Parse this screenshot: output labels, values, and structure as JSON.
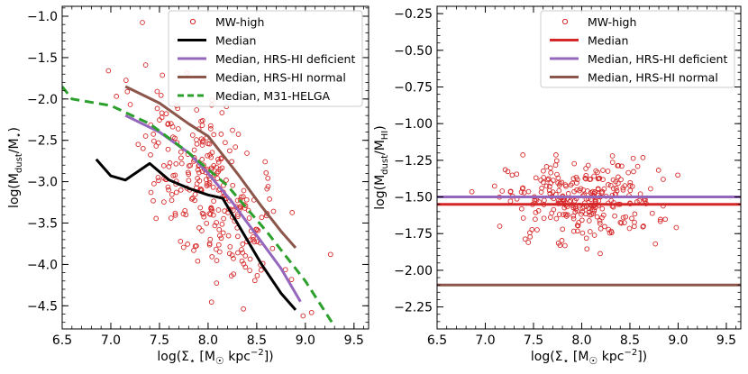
{
  "chart_data": [
    {
      "type": "scatter",
      "xlabel": "log(Σ⋆ [M☉ kpc⁻²])",
      "ylabel": "log(M_dust/M⋆)",
      "xlim": [
        6.5,
        9.65
      ],
      "ylim": [
        -4.78,
        -0.88
      ],
      "xticks": [
        6.5,
        7.0,
        7.5,
        8.0,
        8.5,
        9.0,
        9.5
      ],
      "xtick_labels": [
        "6.5",
        "7.0",
        "7.5",
        "8.0",
        "8.5",
        "9.0",
        "9.5"
      ],
      "yticks": [
        -1.0,
        -1.5,
        -2.0,
        -2.5,
        -3.0,
        -3.5,
        -4.0,
        -4.5
      ],
      "ytick_labels": [
        "−1.0",
        "−1.5",
        "−2.0",
        "−2.5",
        "−3.0",
        "−3.5",
        "−4.0",
        "−4.5"
      ],
      "legend_position": "top-right",
      "legend": [
        "MW-high",
        "Median",
        "Median, HRS-HI deficient",
        "Median, HRS-HI normal",
        "Median, M31-HELGA"
      ],
      "scatter": {
        "name": "MW-high",
        "color": "#d62728",
        "center_x": 8.0,
        "center_y": -3.1,
        "sd_x": 0.38,
        "slope": -0.95,
        "sd_y": 0.45,
        "count": 290
      },
      "series": [
        {
          "name": "Median",
          "color": "#000000",
          "style": "solid",
          "x": [
            6.85,
            7.0,
            7.15,
            7.4,
            7.6,
            7.8,
            8.0,
            8.15,
            8.35,
            8.55,
            8.75,
            8.9
          ],
          "y": [
            -2.73,
            -2.93,
            -2.98,
            -2.78,
            -2.98,
            -3.08,
            -3.16,
            -3.2,
            -3.6,
            -4.0,
            -4.35,
            -4.55
          ]
        },
        {
          "name": "Median, HRS-HI deficient",
          "color": "#9467bd",
          "style": "solid",
          "x": [
            7.15,
            7.5,
            7.8,
            8.0,
            8.25,
            8.5,
            8.75,
            8.95
          ],
          "y": [
            -2.2,
            -2.4,
            -2.65,
            -2.9,
            -3.25,
            -3.65,
            -4.05,
            -4.45
          ]
        },
        {
          "name": "Median, HRS-HI normal",
          "color": "#8c564b",
          "style": "solid",
          "x": [
            7.15,
            7.5,
            7.8,
            8.0,
            8.3,
            8.55,
            8.75,
            8.9
          ],
          "y": [
            -1.85,
            -2.05,
            -2.3,
            -2.45,
            -2.9,
            -3.3,
            -3.6,
            -3.8
          ]
        },
        {
          "name": "Median, M31-HELGA",
          "color": "#2ca02c",
          "style": "dashed",
          "x": [
            6.5,
            6.6,
            7.0,
            7.4,
            7.8,
            8.2,
            8.6,
            9.0,
            9.3
          ],
          "y": [
            -1.85,
            -2.0,
            -2.08,
            -2.3,
            -2.65,
            -3.05,
            -3.6,
            -4.2,
            -4.75
          ]
        }
      ]
    },
    {
      "type": "scatter",
      "xlabel": "log(Σ⋆ [M☉ kpc⁻²])",
      "ylabel": "log(M_dust/M_HI)",
      "xlim": [
        6.5,
        9.65
      ],
      "ylim": [
        -2.4,
        -0.2
      ],
      "xticks": [
        6.5,
        7.0,
        7.5,
        8.0,
        8.5,
        9.0,
        9.5
      ],
      "xtick_labels": [
        "6.5",
        "7.0",
        "7.5",
        "8.0",
        "8.5",
        "9.0",
        "9.5"
      ],
      "yticks": [
        -0.25,
        -0.5,
        -0.75,
        -1.0,
        -1.25,
        -1.5,
        -1.75,
        -2.0,
        -2.25
      ],
      "ytick_labels": [
        "−0.25",
        "−0.50",
        "−0.75",
        "−1.00",
        "−1.25",
        "−1.50",
        "−1.75",
        "−2.00",
        "−2.25"
      ],
      "legend_position": "top-right",
      "legend": [
        "MW-high",
        "Median",
        "Median, HRS-HI deficient",
        "Median, HRS-HI normal"
      ],
      "scatter": {
        "name": "MW-high",
        "color": "#d62728",
        "center_x": 8.0,
        "center_y": -1.52,
        "sd_x": 0.38,
        "slope": 0.0,
        "sd_y": 0.14,
        "count": 290
      },
      "series": [
        {
          "name": "Median",
          "color": "#d62728",
          "style": "solid",
          "x": [
            6.5,
            9.65
          ],
          "y": [
            -1.55,
            -1.55
          ]
        },
        {
          "name": "Median, HRS-HI deficient",
          "color": "#9467bd",
          "style": "solid",
          "x": [
            6.5,
            9.65
          ],
          "y": [
            -1.5,
            -1.5
          ]
        },
        {
          "name": "Median, HRS-HI normal",
          "color": "#8c564b",
          "style": "solid",
          "x": [
            6.5,
            9.65
          ],
          "y": [
            -2.1,
            -2.1
          ]
        }
      ]
    }
  ]
}
